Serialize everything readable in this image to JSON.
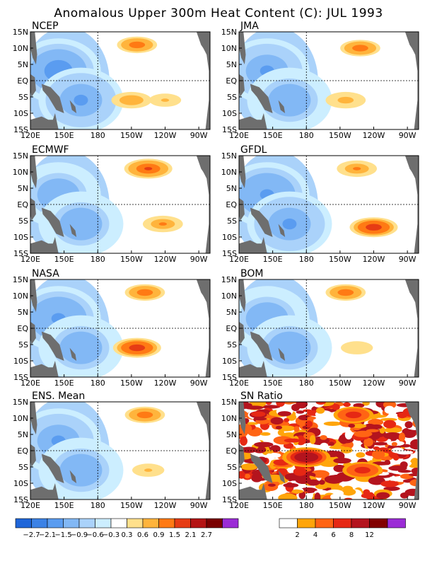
{
  "title": "Anomalous Upper 300m Heat Content (C): JUL 1993",
  "colors": {
    "land": "#6e6e6e",
    "ocean_base": "#ffffff",
    "anom_levels": [
      "#1f66d9",
      "#3c82e6",
      "#5a9cf0",
      "#82b8f5",
      "#aad2fa",
      "#cceeff",
      "#ffffff",
      "#ffe08c",
      "#ffb43c",
      "#ff7a14",
      "#e63c14",
      "#b41414",
      "#7a0000",
      "#9b2cd6"
    ],
    "sn_levels": [
      "#ffffff",
      "#ffa50a",
      "#ff6414",
      "#e62814",
      "#b4141e",
      "#820000",
      "#9b2cd6"
    ]
  },
  "axes": {
    "x_ticks": [
      "120E",
      "150E",
      "180",
      "150W",
      "120W",
      "90W"
    ],
    "y_ticks": [
      "15N",
      "10N",
      "5N",
      "EQ",
      "5S",
      "10S",
      "15S"
    ]
  },
  "legend_anom": {
    "labels": [
      "−2.7",
      "−2.1",
      "−1.5",
      "−0.9",
      "−0.6",
      "−0.3",
      "0.3",
      "0.6",
      "0.9",
      "1.5",
      "2.1",
      "2.7"
    ]
  },
  "legend_sn": {
    "labels": [
      "2",
      "4",
      "6",
      "8",
      "12"
    ]
  },
  "chart_data": [
    {
      "type": "heatmap",
      "title": "NCEP",
      "x_range": [
        120,
        280
      ],
      "y_range": [
        -15,
        15
      ],
      "xlabel": "",
      "ylabel": "",
      "features": [
        {
          "lon": 145,
          "lat": 3,
          "value": -1.8
        },
        {
          "lon": 165,
          "lat": -6,
          "value": -1.6
        },
        {
          "lon": 215,
          "lat": 11,
          "value": 1.2
        },
        {
          "lon": 210,
          "lat": -6,
          "value": 0.9
        },
        {
          "lon": 240,
          "lat": -6,
          "value": 0.7
        }
      ]
    },
    {
      "type": "heatmap",
      "title": "JMA",
      "x_range": [
        120,
        280
      ],
      "y_range": [
        -15,
        15
      ],
      "xlabel": "",
      "ylabel": "",
      "features": [
        {
          "lon": 145,
          "lat": 3,
          "value": -1.6
        },
        {
          "lon": 165,
          "lat": -6,
          "value": -1.4
        },
        {
          "lon": 228,
          "lat": 10,
          "value": 1.2
        },
        {
          "lon": 215,
          "lat": -6,
          "value": 0.8
        }
      ]
    },
    {
      "type": "heatmap",
      "title": "ECMWF",
      "x_range": [
        120,
        280
      ],
      "y_range": [
        -15,
        15
      ],
      "xlabel": "",
      "ylabel": "",
      "features": [
        {
          "lon": 145,
          "lat": 3,
          "value": -1.5
        },
        {
          "lon": 165,
          "lat": -6,
          "value": -1.5
        },
        {
          "lon": 225,
          "lat": 11,
          "value": 1.6
        },
        {
          "lon": 238,
          "lat": -6,
          "value": 1.0
        }
      ]
    },
    {
      "type": "heatmap",
      "title": "GFDL",
      "x_range": [
        120,
        280
      ],
      "y_range": [
        -15,
        15
      ],
      "xlabel": "",
      "ylabel": "",
      "features": [
        {
          "lon": 145,
          "lat": 3,
          "value": -1.7
        },
        {
          "lon": 165,
          "lat": -6,
          "value": -1.6
        },
        {
          "lon": 225,
          "lat": 11,
          "value": 1.0
        },
        {
          "lon": 240,
          "lat": -7,
          "value": 1.8
        }
      ]
    },
    {
      "type": "heatmap",
      "title": "NASA",
      "x_range": [
        120,
        280
      ],
      "y_range": [
        -15,
        15
      ],
      "xlabel": "",
      "ylabel": "",
      "features": [
        {
          "lon": 145,
          "lat": 3,
          "value": -1.7
        },
        {
          "lon": 165,
          "lat": -6,
          "value": -1.3
        },
        {
          "lon": 222,
          "lat": 11,
          "value": 1.2
        },
        {
          "lon": 215,
          "lat": -6,
          "value": 2.0
        }
      ]
    },
    {
      "type": "heatmap",
      "title": "BOM",
      "x_range": [
        120,
        280
      ],
      "y_range": [
        -15,
        15
      ],
      "xlabel": "",
      "ylabel": "",
      "features": [
        {
          "lon": 145,
          "lat": 3,
          "value": -1.4
        },
        {
          "lon": 165,
          "lat": -6,
          "value": -1.3
        },
        {
          "lon": 215,
          "lat": 11,
          "value": 1.2
        },
        {
          "lon": 225,
          "lat": -6,
          "value": 0.6
        }
      ]
    },
    {
      "type": "heatmap",
      "title": "ENS. Mean",
      "x_range": [
        120,
        280
      ],
      "y_range": [
        -15,
        15
      ],
      "xlabel": "",
      "ylabel": "",
      "features": [
        {
          "lon": 145,
          "lat": 3,
          "value": -1.6
        },
        {
          "lon": 165,
          "lat": -6,
          "value": -1.4
        },
        {
          "lon": 222,
          "lat": 11,
          "value": 1.2
        },
        {
          "lon": 225,
          "lat": -6,
          "value": 0.7
        }
      ]
    },
    {
      "type": "heatmap",
      "title": "SN Ratio",
      "x_range": [
        120,
        280
      ],
      "y_range": [
        -15,
        15
      ],
      "xlabel": "",
      "ylabel": "",
      "features": [
        {
          "lon": 180,
          "lat": -2,
          "value": 12
        },
        {
          "lon": 222,
          "lat": 11,
          "value": 8
        },
        {
          "lon": 230,
          "lat": -6,
          "value": 8
        }
      ]
    }
  ]
}
